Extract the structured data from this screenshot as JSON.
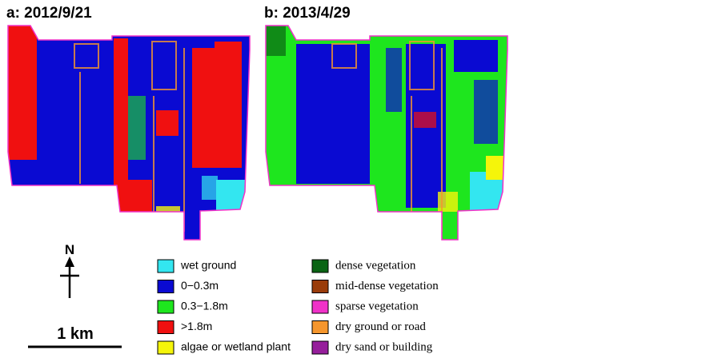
{
  "panels": [
    {
      "title": "a: 2012/9/21"
    },
    {
      "title": "b: 2013/4/29"
    }
  ],
  "north": "N",
  "scale": "1 km",
  "legend": [
    {
      "label": "wet ground",
      "color": "#33e6f0"
    },
    {
      "label": "0−0.3m",
      "color": "#0a0ad2"
    },
    {
      "label": "0.3−1.8m",
      "color": "#1ee61e"
    },
    {
      "label": ">1.8m",
      "color": "#f01010"
    },
    {
      "label": "algae or wetland plant",
      "color": "#f5f50a"
    },
    {
      "label": "dense vegetation",
      "color": "#0a6414"
    },
    {
      "label": "mid-dense vegetation",
      "color": "#9a3c0a"
    },
    {
      "label": "sparse vegetation",
      "color": "#f032c8"
    },
    {
      "label": "dry ground or road",
      "color": "#f5962d"
    },
    {
      "label": "dry sand or building",
      "color": "#961e9b"
    }
  ]
}
